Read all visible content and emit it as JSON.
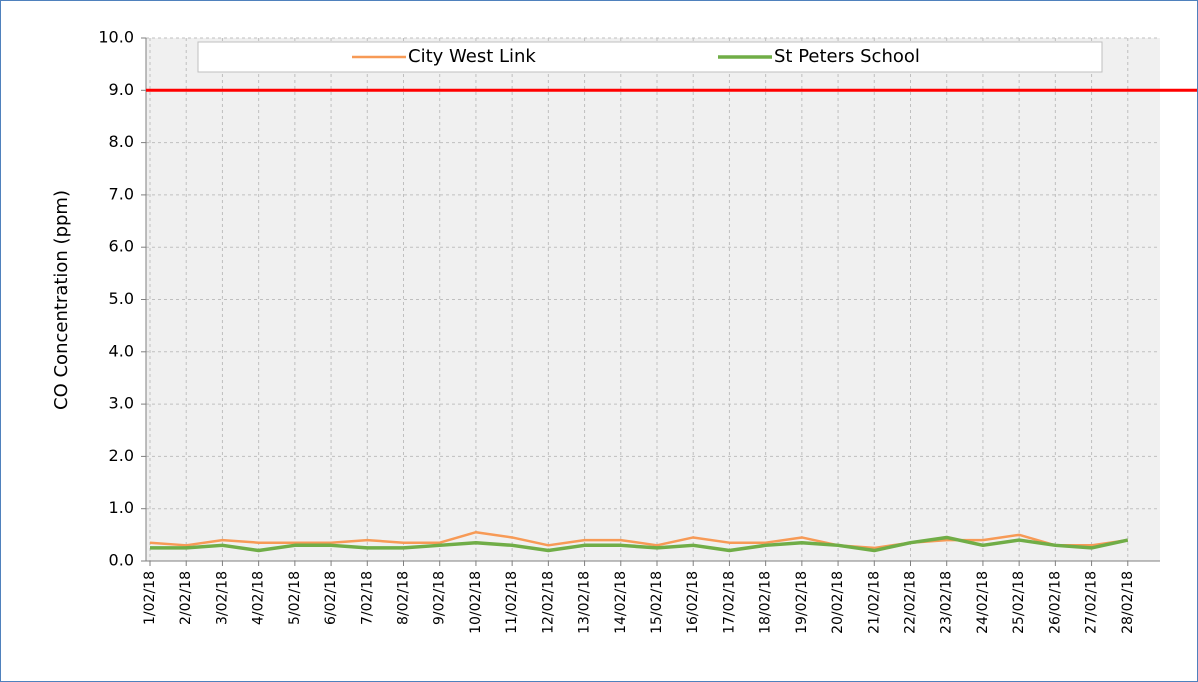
{
  "chart_data": {
    "type": "line",
    "y_label": "CO Concentration (ppm)",
    "categories": [
      "1/02/18",
      "2/02/18",
      "3/02/18",
      "4/02/18",
      "5/02/18",
      "6/02/18",
      "7/02/18",
      "8/02/18",
      "9/02/18",
      "10/02/18",
      "11/02/18",
      "12/02/18",
      "13/02/18",
      "14/02/18",
      "15/02/18",
      "16/02/18",
      "17/02/18",
      "18/02/18",
      "19/02/18",
      "20/02/18",
      "21/02/18",
      "22/02/18",
      "23/02/18",
      "24/02/18",
      "25/02/18",
      "26/02/18",
      "27/02/18",
      "28/02/18"
    ],
    "series": [
      {
        "name": "City West Link",
        "color": "#f79a56",
        "width": 2.5,
        "values": [
          0.35,
          0.3,
          0.4,
          0.35,
          0.35,
          0.35,
          0.4,
          0.35,
          0.35,
          0.55,
          0.45,
          0.3,
          0.4,
          0.4,
          0.3,
          0.45,
          0.35,
          0.35,
          0.45,
          0.3,
          0.25,
          0.35,
          0.4,
          0.4,
          0.5,
          0.3,
          0.3,
          0.4
        ]
      },
      {
        "name": "St Peters School",
        "color": "#70ad47",
        "width": 3.5,
        "values": [
          0.25,
          0.25,
          0.3,
          0.2,
          0.3,
          0.3,
          0.25,
          0.25,
          0.3,
          0.35,
          0.3,
          0.2,
          0.3,
          0.3,
          0.25,
          0.3,
          0.2,
          0.3,
          0.35,
          0.3,
          0.2,
          0.35,
          0.45,
          0.3,
          0.4,
          0.3,
          0.25,
          0.4
        ]
      }
    ],
    "reference_line": {
      "value": 9,
      "color": "#ff0000"
    },
    "ylim": [
      0,
      10
    ],
    "yticks": [
      {
        "value": 0,
        "label": "0.0"
      },
      {
        "value": 1,
        "label": "1.0"
      },
      {
        "value": 2,
        "label": "2.0"
      },
      {
        "value": 3,
        "label": "3.0"
      },
      {
        "value": 4,
        "label": "4.0"
      },
      {
        "value": 5,
        "label": "5.0"
      },
      {
        "value": 6,
        "label": "6.0"
      },
      {
        "value": 7,
        "label": "7.0"
      },
      {
        "value": 8,
        "label": "8.0"
      },
      {
        "value": 9,
        "label": "9.0"
      },
      {
        "value": 10,
        "label": "10.0"
      }
    ],
    "grid": true,
    "legend": "top"
  }
}
